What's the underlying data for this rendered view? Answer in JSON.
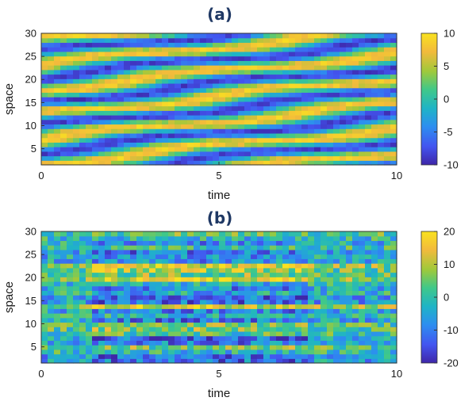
{
  "chart_data": [
    {
      "type": "heatmap",
      "title": "(a)",
      "xlabel": "time",
      "ylabel": "space",
      "xlim": [
        0,
        10
      ],
      "ylim": [
        1.5,
        30
      ],
      "xticks": [
        "0",
        "5",
        "10"
      ],
      "yticks": [
        "5",
        "10",
        "15",
        "20",
        "25",
        "30"
      ],
      "colorbar": {
        "range": [
          -10,
          10
        ],
        "ticks": [
          "-10",
          "-5",
          "0",
          "5",
          "10"
        ]
      },
      "description_of_values": "Space-time field, amplitude approximately -10 to 10, showing diagonal travelling stripes",
      "grid": false,
      "colormap": "parula"
    },
    {
      "type": "heatmap",
      "title": "(b)",
      "xlabel": "time",
      "ylabel": "space",
      "xlim": [
        0,
        10
      ],
      "ylim": [
        1.5,
        30
      ],
      "xticks": [
        "0",
        "5",
        "10"
      ],
      "yticks": [
        "5",
        "10",
        "15",
        "20",
        "25",
        "30"
      ],
      "colorbar": {
        "range": [
          -20,
          20
        ],
        "ticks": [
          "-20",
          "-10",
          "0",
          "10",
          "20"
        ]
      },
      "description_of_values": "Space-time field, amplitude approximately -20 to 20, noisy horizontal bands",
      "grid": false,
      "colormap": "parula"
    }
  ],
  "colors": {
    "colormap_stops": [
      "#3e26a8",
      "#4355f0",
      "#2d8ef0",
      "#1fb4c6",
      "#3fc88a",
      "#9fc93b",
      "#f2ba3c",
      "#f9e21f"
    ],
    "title_color": "#1f3864"
  }
}
